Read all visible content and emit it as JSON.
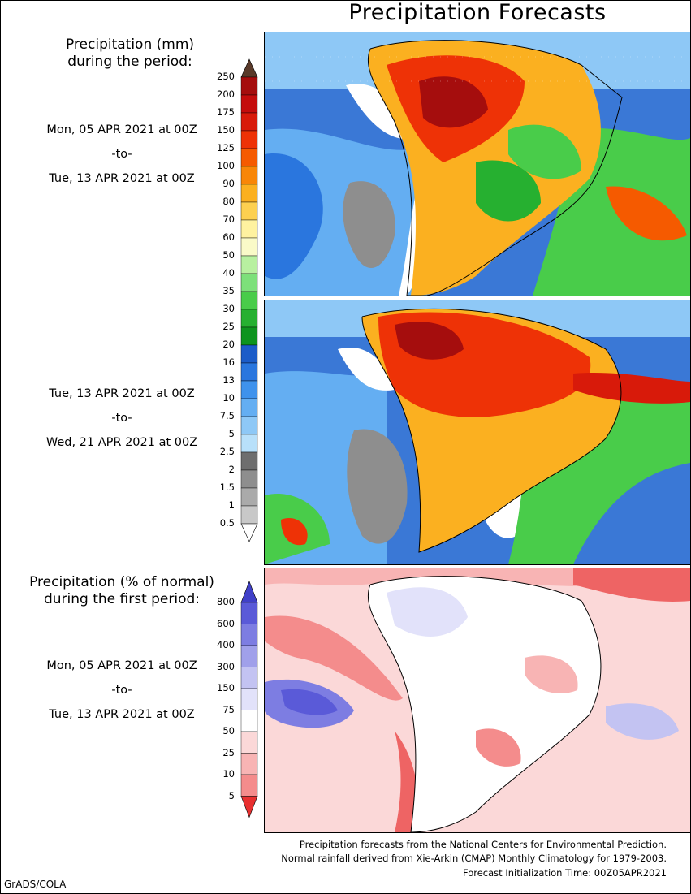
{
  "title": "Precipitation Forecasts",
  "panel1": {
    "heading_line1": "Precipitation (mm)",
    "heading_line2": "during the period:",
    "start": "Mon, 05 APR 2021 at 00Z",
    "to": "-to-",
    "end": "Tue, 13 APR 2021 at 00Z"
  },
  "panel2": {
    "start": "Tue, 13 APR 2021 at 00Z",
    "to": "-to-",
    "end": "Wed, 21 APR 2021 at 00Z"
  },
  "panel3": {
    "heading_line1": "Precipitation (% of normal)",
    "heading_line2": "during the first period:",
    "start": "Mon, 05 APR 2021 at 00Z",
    "to": "-to-",
    "end": "Tue, 13 APR 2021 at 00Z"
  },
  "precip_scale": {
    "labels": [
      "250",
      "200",
      "175",
      "150",
      "125",
      "100",
      "90",
      "80",
      "70",
      "60",
      "50",
      "40",
      "35",
      "30",
      "25",
      "20",
      "16",
      "13",
      "10",
      "7.5",
      "5",
      "2.5",
      "2",
      "1.5",
      "1",
      "0.5"
    ],
    "colors": [
      "#7a1e10",
      "#a50d0d",
      "#c40c0c",
      "#d81a0a",
      "#ee3206",
      "#f55a00",
      "#f88608",
      "#fbb020",
      "#fdd050",
      "#fff2a0",
      "#fafac8",
      "#b8f0a0",
      "#7de07a",
      "#49cc4a",
      "#26b030",
      "#0e941e",
      "#1c5cc8",
      "#2a76de",
      "#3f92ec",
      "#64aef2",
      "#8ec8f6",
      "#b8e0fa",
      "#6e6e6e",
      "#8e8e8e",
      "#aaaaaa",
      "#c8c8c8"
    ],
    "top_arrow_color": "#5a3a2a"
  },
  "pct_scale": {
    "labels": [
      "800",
      "600",
      "400",
      "300",
      "150",
      "75",
      "50",
      "25",
      "10",
      "5"
    ],
    "colors": [
      "#5a5ad8",
      "#7d7de2",
      "#a0a0ea",
      "#c3c3f2",
      "#e2e2fa",
      "#ffffff",
      "#fbd8d8",
      "#f8b4b4",
      "#f48c8c",
      "#ee6464"
    ],
    "top_arrow_color": "#4040c8",
    "bottom_arrow_color": "#e83030"
  },
  "footer": {
    "line1": "Precipitation forecasts from the National Centers for Environmental Prediction.",
    "line2": "Normal rainfall derived from Xie-Arkin (CMAP) Monthly Climatology for 1979-2003.",
    "line3": "Forecast Initialization Time: 00Z05APR2021"
  },
  "credit": "GrADS/COLA"
}
